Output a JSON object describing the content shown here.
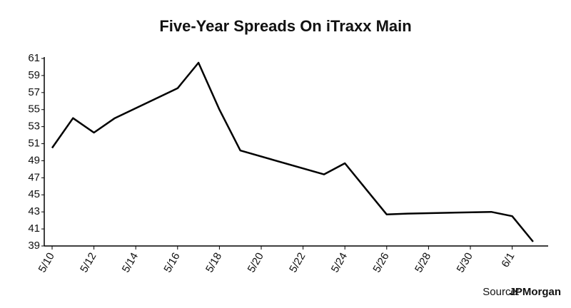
{
  "chart_data": {
    "type": "line",
    "title": "Five-Year Spreads On iTraxx Main",
    "x": [
      "5/10",
      "5/11",
      "5/12",
      "5/13",
      "5/16",
      "5/17",
      "5/18",
      "5/19",
      "5/23",
      "5/24",
      "5/25",
      "5/26",
      "5/27",
      "5/31",
      "6/1",
      "6/2"
    ],
    "series": [
      {
        "name": "iTraxx Main",
        "color": "#000000",
        "values": [
          50.5,
          54.0,
          52.3,
          54.0,
          57.5,
          60.5,
          55.0,
          50.2,
          47.4,
          48.7,
          45.7,
          42.7,
          42.8,
          43.0,
          42.5,
          39.5
        ]
      }
    ],
    "xticks": [
      "5/10",
      "5/12",
      "5/14",
      "5/16",
      "5/18",
      "5/20",
      "5/22",
      "5/24",
      "5/26",
      "5/28",
      "5/30",
      "6/1"
    ],
    "ylim": [
      39,
      61
    ],
    "yticks": [
      39,
      41,
      43,
      45,
      47,
      49,
      51,
      53,
      55,
      57,
      59,
      61
    ],
    "source_label": "Source:",
    "source_name": "JPMorgan"
  }
}
